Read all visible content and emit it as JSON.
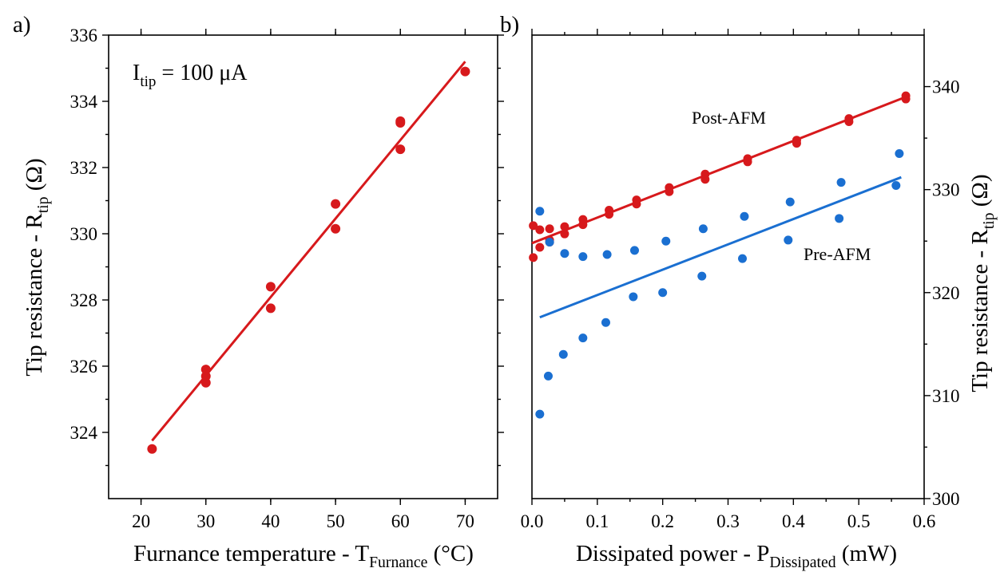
{
  "chart_data": [
    {
      "type": "scatter",
      "panel_label": "a)",
      "annotation": {
        "main": "I",
        "sub": "tip",
        "rest": " = 100 μA"
      },
      "xlabel": {
        "main": "Furnance temperature - T",
        "sub": "Furnance",
        "rest": " (°C)"
      },
      "ylabel": {
        "main": "Tip resistance - R",
        "sub": "tip",
        "rest": " (Ω)"
      },
      "xlim": [
        15,
        75
      ],
      "ylim": [
        322,
        336
      ],
      "x_ticks": [
        "20",
        "30",
        "40",
        "50",
        "60",
        "70"
      ],
      "y_ticks": [
        "324",
        "326",
        "328",
        "330",
        "332",
        "334",
        "336"
      ],
      "series": [
        {
          "color": "#d7191c",
          "points": [
            [
              21.7,
              323.5
            ],
            [
              30.0,
              325.5
            ],
            [
              30.0,
              325.7
            ],
            [
              30.0,
              325.9
            ],
            [
              40.0,
              327.75
            ],
            [
              40.0,
              328.4
            ],
            [
              50.0,
              330.15
            ],
            [
              50.0,
              330.9
            ],
            [
              60.0,
              332.55
            ],
            [
              60.0,
              333.35
            ],
            [
              60.0,
              333.4
            ],
            [
              70.0,
              334.9
            ]
          ],
          "fit": [
            [
              21.7,
              323.75
            ],
            [
              70.0,
              335.2
            ]
          ]
        }
      ]
    },
    {
      "type": "scatter",
      "panel_label": "b)",
      "xlabel": {
        "main": "Dissipated power - P",
        "sub": "Dissipated",
        "rest": " (mW)"
      },
      "ylabel_right": {
        "main": "Tip resistance - R",
        "sub": "tip",
        "rest": " (Ω)"
      },
      "xlim": [
        0.0,
        0.6
      ],
      "ylim": [
        300,
        345
      ],
      "x_ticks": [
        "0.0",
        "0.1",
        "0.2",
        "0.3",
        "0.4",
        "0.5",
        "0.6"
      ],
      "y_ticks": [
        "300",
        "310",
        "320",
        "330",
        "340"
      ],
      "series": [
        {
          "name": "Post-AFM",
          "color": "#d7191c",
          "points": [
            [
              0.002,
              323.4
            ],
            [
              0.002,
              326.5
            ],
            [
              0.012,
              326.1
            ],
            [
              0.012,
              324.4
            ],
            [
              0.027,
              326.2
            ],
            [
              0.027,
              324.9
            ],
            [
              0.027,
              325.1
            ],
            [
              0.05,
              326.4
            ],
            [
              0.05,
              325.7
            ],
            [
              0.078,
              327.1
            ],
            [
              0.078,
              326.6
            ],
            [
              0.118,
              328.0
            ],
            [
              0.118,
              327.6
            ],
            [
              0.16,
              329.0
            ],
            [
              0.16,
              328.6
            ],
            [
              0.21,
              330.2
            ],
            [
              0.21,
              329.8
            ],
            [
              0.265,
              331.5
            ],
            [
              0.265,
              331.0
            ],
            [
              0.33,
              333.0
            ],
            [
              0.33,
              332.7
            ],
            [
              0.405,
              334.8
            ],
            [
              0.405,
              334.5
            ],
            [
              0.485,
              336.9
            ],
            [
              0.485,
              336.6
            ],
            [
              0.572,
              339.1
            ],
            [
              0.572,
              338.8
            ]
          ],
          "fit": [
            [
              0.0,
              324.8
            ],
            [
              0.572,
              339.0
            ]
          ]
        },
        {
          "name": "Pre-AFM",
          "color": "#1a6fd1",
          "points": [
            [
              0.012,
              308.2
            ],
            [
              0.012,
              327.9
            ],
            [
              0.025,
              311.9
            ],
            [
              0.027,
              324.9
            ],
            [
              0.048,
              314.0
            ],
            [
              0.05,
              323.8
            ],
            [
              0.078,
              315.6
            ],
            [
              0.078,
              323.5
            ],
            [
              0.113,
              317.1
            ],
            [
              0.115,
              323.7
            ],
            [
              0.155,
              319.6
            ],
            [
              0.157,
              324.1
            ],
            [
              0.2,
              320.0
            ],
            [
              0.205,
              325.0
            ],
            [
              0.26,
              321.6
            ],
            [
              0.262,
              326.2
            ],
            [
              0.322,
              323.3
            ],
            [
              0.325,
              327.4
            ],
            [
              0.392,
              325.1
            ],
            [
              0.395,
              328.8
            ],
            [
              0.47,
              327.2
            ],
            [
              0.473,
              330.7
            ],
            [
              0.557,
              330.4
            ],
            [
              0.562,
              333.5
            ]
          ],
          "fit": [
            [
              0.012,
              317.6
            ],
            [
              0.565,
              331.2
            ]
          ]
        }
      ]
    }
  ]
}
